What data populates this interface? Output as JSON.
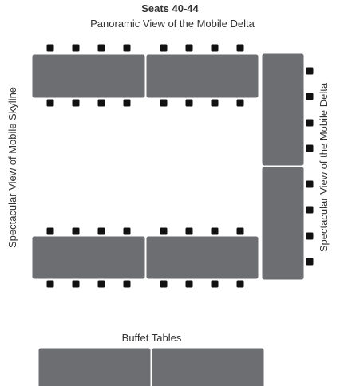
{
  "header": {
    "title": "Seats 40-44",
    "subtitle": "Panoramic View of the Mobile Delta"
  },
  "labels": {
    "left": "Spectacular View of Mobile Skyline",
    "right": "Spectacular View of the Mobile Delta"
  },
  "buffet": {
    "label": "Buffet Tables"
  }
}
